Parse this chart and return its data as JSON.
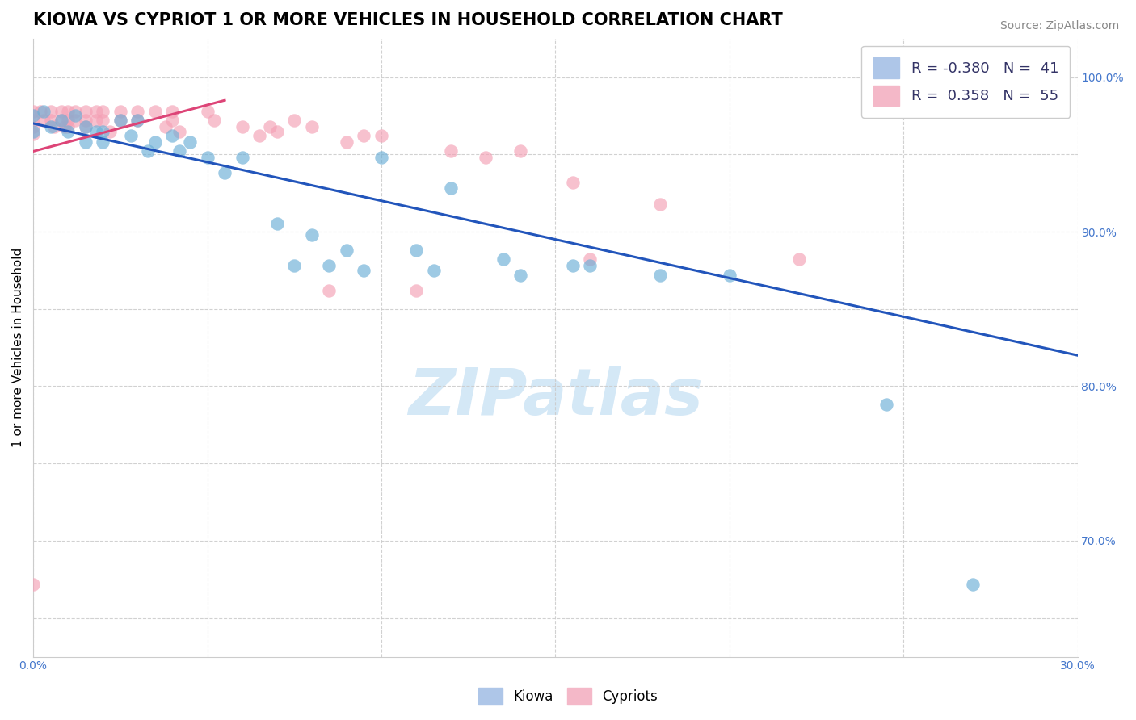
{
  "title": "KIOWA VS CYPRIOT 1 OR MORE VEHICLES IN HOUSEHOLD CORRELATION CHART",
  "source": "Source: ZipAtlas.com",
  "ylabel": "1 or more Vehicles in Household",
  "xlim": [
    0.0,
    0.3
  ],
  "ylim": [
    0.625,
    1.025
  ],
  "kiowa_color": "#6baed6",
  "cypriot_color": "#f4a0b5",
  "kiowa_x": [
    0.0,
    0.0,
    0.003,
    0.005,
    0.008,
    0.01,
    0.012,
    0.015,
    0.015,
    0.018,
    0.02,
    0.02,
    0.025,
    0.028,
    0.03,
    0.033,
    0.035,
    0.04,
    0.042,
    0.045,
    0.05,
    0.055,
    0.06,
    0.07,
    0.075,
    0.08,
    0.085,
    0.09,
    0.095,
    0.1,
    0.11,
    0.115,
    0.12,
    0.135,
    0.14,
    0.155,
    0.16,
    0.18,
    0.2,
    0.245,
    0.27
  ],
  "kiowa_y": [
    0.975,
    0.965,
    0.978,
    0.968,
    0.972,
    0.965,
    0.975,
    0.968,
    0.958,
    0.965,
    0.958,
    0.965,
    0.972,
    0.962,
    0.972,
    0.952,
    0.958,
    0.962,
    0.952,
    0.958,
    0.948,
    0.938,
    0.948,
    0.905,
    0.878,
    0.898,
    0.878,
    0.888,
    0.875,
    0.948,
    0.888,
    0.875,
    0.928,
    0.882,
    0.872,
    0.878,
    0.878,
    0.872,
    0.872,
    0.788,
    0.672
  ],
  "cypriot_x": [
    0.0,
    0.0,
    0.0,
    0.0,
    0.0,
    0.002,
    0.003,
    0.005,
    0.005,
    0.006,
    0.008,
    0.008,
    0.009,
    0.01,
    0.01,
    0.01,
    0.012,
    0.012,
    0.015,
    0.015,
    0.015,
    0.018,
    0.018,
    0.02,
    0.02,
    0.022,
    0.025,
    0.025,
    0.03,
    0.03,
    0.035,
    0.038,
    0.04,
    0.04,
    0.042,
    0.05,
    0.052,
    0.06,
    0.065,
    0.068,
    0.07,
    0.075,
    0.08,
    0.085,
    0.09,
    0.095,
    0.1,
    0.11,
    0.12,
    0.13,
    0.14,
    0.155,
    0.16,
    0.18,
    0.22
  ],
  "cypriot_y": [
    0.978,
    0.972,
    0.968,
    0.963,
    0.672,
    0.978,
    0.972,
    0.978,
    0.972,
    0.968,
    0.978,
    0.972,
    0.968,
    0.978,
    0.972,
    0.968,
    0.978,
    0.972,
    0.978,
    0.972,
    0.968,
    0.978,
    0.972,
    0.978,
    0.972,
    0.965,
    0.978,
    0.972,
    0.978,
    0.972,
    0.978,
    0.968,
    0.978,
    0.972,
    0.965,
    0.978,
    0.972,
    0.968,
    0.962,
    0.968,
    0.965,
    0.972,
    0.968,
    0.862,
    0.958,
    0.962,
    0.962,
    0.862,
    0.952,
    0.948,
    0.952,
    0.932,
    0.882,
    0.918,
    0.882
  ],
  "kiowa_trend_x": [
    0.0,
    0.3
  ],
  "kiowa_trend_y": [
    0.97,
    0.82
  ],
  "cypriot_trend_x": [
    0.0,
    0.055
  ],
  "cypriot_trend_y": [
    0.952,
    0.985
  ],
  "watermark_text": "ZIPatlas",
  "background_color": "#ffffff",
  "grid_color": "#cccccc",
  "title_fontsize": 15,
  "axis_label_fontsize": 11,
  "tick_fontsize": 10,
  "source_fontsize": 10,
  "legend_r1": "R = -0.380",
  "legend_n1": "N =  41",
  "legend_r2": "R =  0.358",
  "legend_n2": "N =  55"
}
